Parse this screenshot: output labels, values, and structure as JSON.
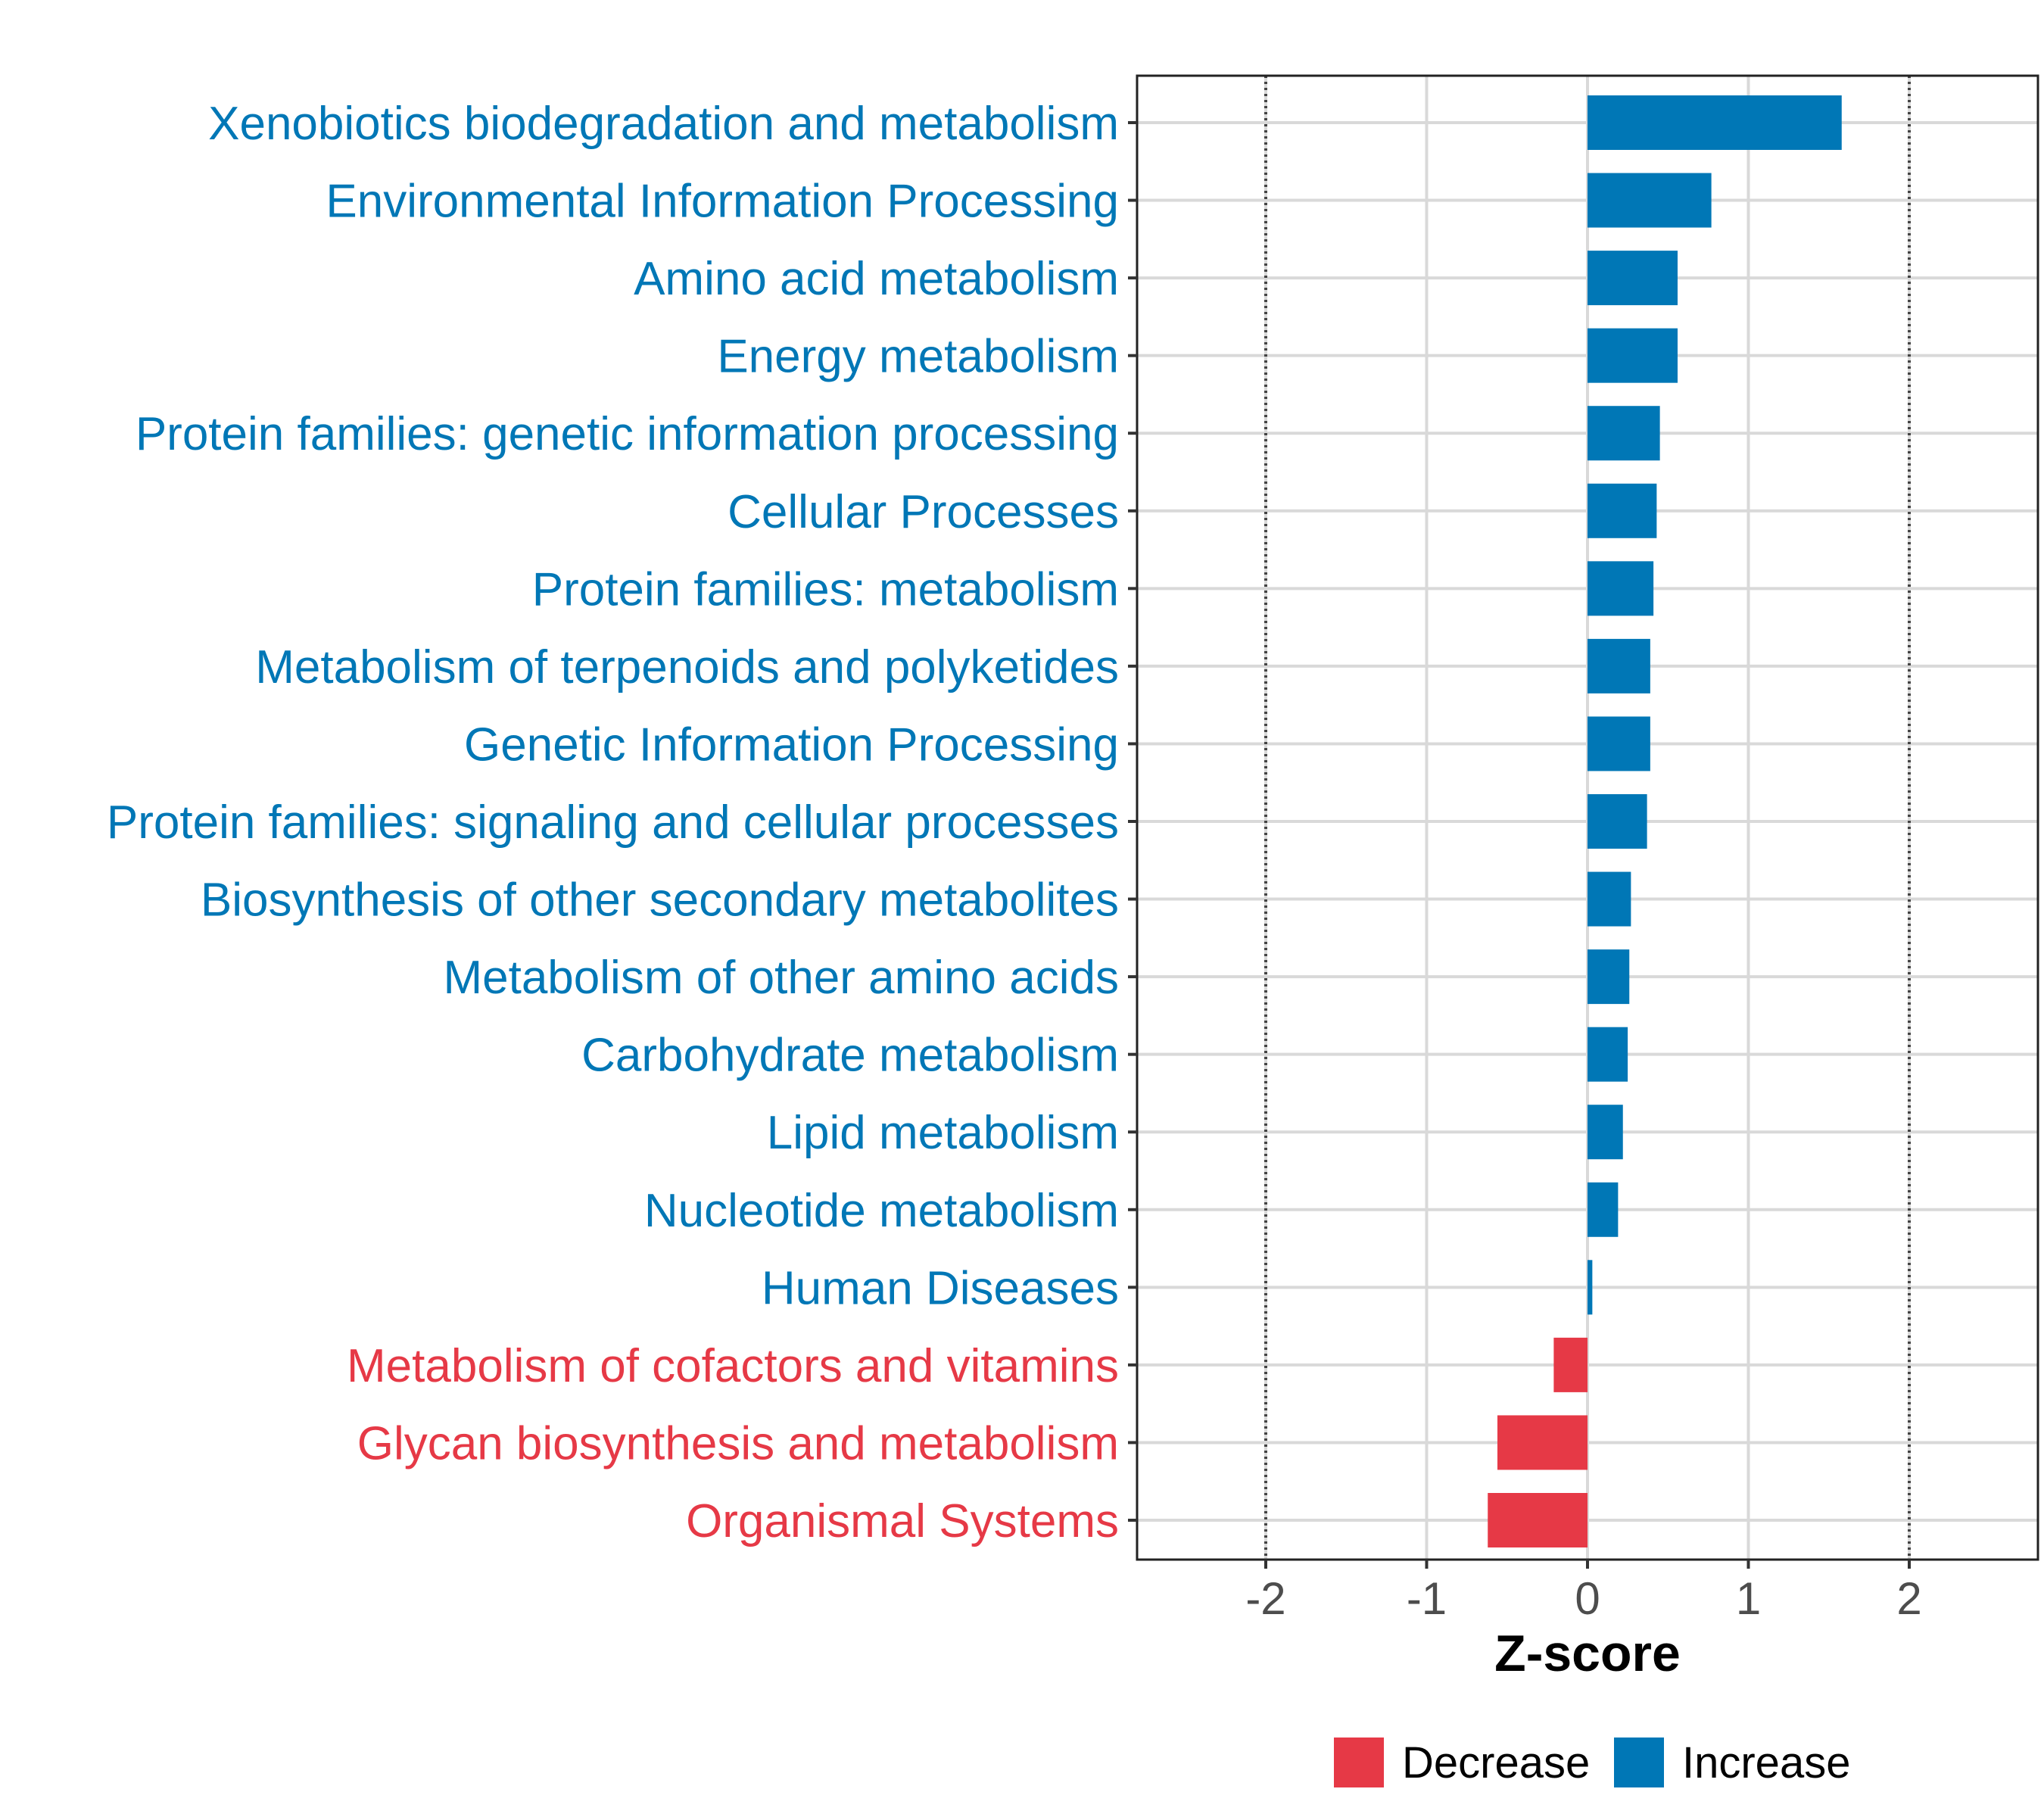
{
  "chart_data": {
    "type": "bar",
    "orientation": "horizontal",
    "xlabel": "Z-score",
    "ylabel": "",
    "xlim": [
      -2.8,
      2.8
    ],
    "xticks": [
      -2,
      -1,
      0,
      1,
      2
    ],
    "xtick_labels": [
      "-2",
      "-1",
      "0",
      "1",
      "2"
    ],
    "reference_lines": [
      -2,
      2
    ],
    "grid": true,
    "legend_position": "bottom",
    "legend": [
      {
        "name": "Decrease",
        "color": "#E63946"
      },
      {
        "name": "Increase",
        "color": "#0077B6"
      }
    ],
    "categories": [
      "Xenobiotics biodegradation and metabolism",
      "Environmental Information Processing",
      "Amino acid metabolism",
      "Energy metabolism",
      "Protein families: genetic information processing",
      "Cellular Processes",
      "Protein families: metabolism",
      "Metabolism of terpenoids and polyketides",
      "Genetic Information Processing",
      "Protein families: signaling and cellular processes",
      "Biosynthesis of other secondary metabolites",
      "Metabolism of other amino acids",
      "Carbohydrate metabolism",
      "Lipid metabolism",
      "Nucleotide metabolism",
      "Human Diseases",
      "Metabolism of cofactors and vitamins",
      "Glycan biosynthesis and metabolism",
      "Organismal Systems"
    ],
    "values": [
      1.58,
      0.77,
      0.56,
      0.56,
      0.45,
      0.43,
      0.41,
      0.39,
      0.39,
      0.37,
      0.27,
      0.26,
      0.25,
      0.22,
      0.19,
      0.03,
      -0.21,
      -0.56,
      -0.62
    ],
    "groups": [
      "Increase",
      "Increase",
      "Increase",
      "Increase",
      "Increase",
      "Increase",
      "Increase",
      "Increase",
      "Increase",
      "Increase",
      "Increase",
      "Increase",
      "Increase",
      "Increase",
      "Increase",
      "Increase",
      "Decrease",
      "Decrease",
      "Decrease"
    ]
  }
}
